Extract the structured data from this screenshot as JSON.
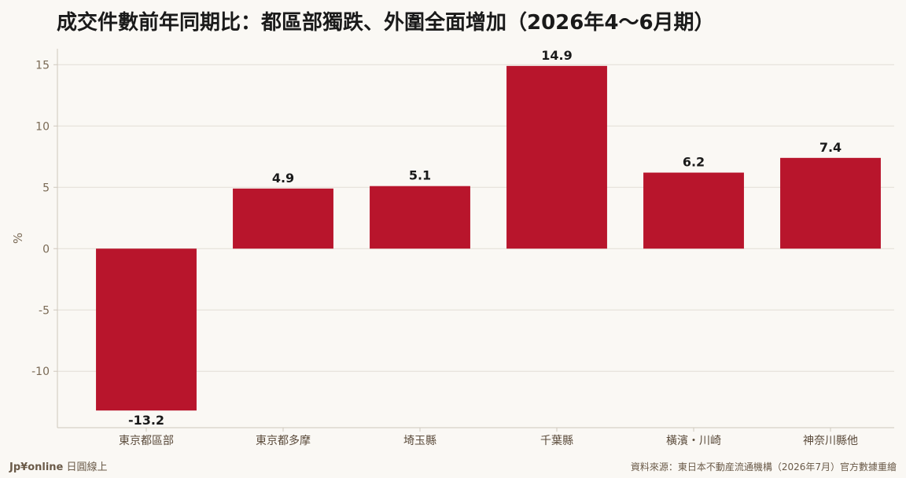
{
  "chart_data": {
    "type": "bar",
    "title": "成交件數前年同期比：都區部獨跌、外圍全面增加（2026年4〜6月期）",
    "ylabel": "%",
    "xlabel": "",
    "categories": [
      "東京都區部",
      "東京都多摩",
      "埼玉縣",
      "千葉縣",
      "橫濱・川崎",
      "神奈川縣他"
    ],
    "values": [
      -13.2,
      4.9,
      5.1,
      14.9,
      6.2,
      7.4
    ],
    "value_labels": [
      "-13.2",
      "4.9",
      "5.1",
      "14.9",
      "6.2",
      "7.4"
    ],
    "ylim": [
      -14.6,
      16.3
    ],
    "yticks": [
      15,
      10,
      5,
      0,
      -5,
      -10
    ],
    "ytick_labels": [
      "15",
      "10",
      "5",
      "0",
      "-5",
      "-10"
    ],
    "grid": true,
    "legend": "none",
    "colors": {
      "bar": "#b8152c"
    }
  },
  "footer": {
    "brand": "Jp¥online",
    "brand_suffix": " 日圓線上",
    "source": "資料來源：東日本不動産流通機構（2026年7月）官方數據重繪"
  },
  "colors": {
    "background": "#faf8f4",
    "grid": "#e2ddd5",
    "axis": "#cfc8bd"
  }
}
